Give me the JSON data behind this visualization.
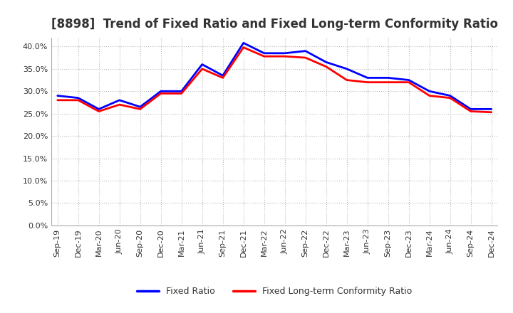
{
  "title": "[8898]  Trend of Fixed Ratio and Fixed Long-term Conformity Ratio",
  "x_labels": [
    "Sep-19",
    "Dec-19",
    "Mar-20",
    "Jun-20",
    "Sep-20",
    "Dec-20",
    "Mar-21",
    "Jun-21",
    "Sep-21",
    "Dec-21",
    "Mar-22",
    "Jun-22",
    "Sep-22",
    "Dec-22",
    "Mar-23",
    "Jun-23",
    "Sep-23",
    "Dec-23",
    "Mar-24",
    "Jun-24",
    "Sep-24",
    "Dec-24"
  ],
  "fixed_ratio": [
    29.0,
    28.5,
    26.0,
    28.0,
    26.5,
    30.0,
    30.0,
    36.0,
    33.5,
    40.8,
    38.5,
    38.5,
    39.0,
    36.5,
    35.0,
    33.0,
    33.0,
    32.5,
    30.0,
    29.0,
    26.0,
    26.0
  ],
  "fixed_lt_ratio": [
    28.0,
    28.0,
    25.5,
    27.0,
    26.0,
    29.5,
    29.5,
    35.0,
    33.0,
    39.8,
    37.8,
    37.8,
    37.5,
    35.5,
    32.5,
    32.0,
    32.0,
    32.0,
    29.0,
    28.5,
    25.5,
    25.3
  ],
  "fixed_ratio_color": "#0000FF",
  "fixed_lt_ratio_color": "#FF0000",
  "ylim": [
    0,
    42
  ],
  "yticks": [
    0,
    5,
    10,
    15,
    20,
    25,
    30,
    35,
    40
  ],
  "background_color": "#FFFFFF",
  "plot_bg_color": "#FFFFFF",
  "grid_color": "#BBBBBB",
  "legend_fixed_ratio": "Fixed Ratio",
  "legend_fixed_lt_ratio": "Fixed Long-term Conformity Ratio",
  "title_fontsize": 12,
  "tick_fontsize": 8,
  "legend_fontsize": 9
}
